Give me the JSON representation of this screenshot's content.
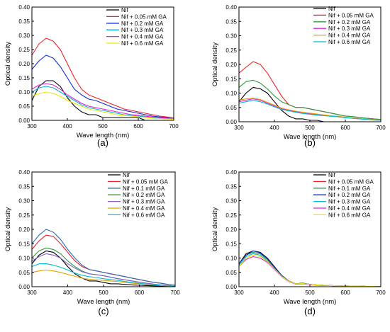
{
  "figure": {
    "panels": [
      {
        "id": "a",
        "label": "(a)"
      },
      {
        "id": "b",
        "label": "(b)"
      },
      {
        "id": "c",
        "label": "(c)"
      },
      {
        "id": "d",
        "label": "(d)"
      }
    ]
  },
  "chart_data": [
    {
      "type": "line",
      "title": "",
      "panel_label": "(a)",
      "xlabel": "Wave length (nm)",
      "ylabel": "Optical density",
      "xlim": [
        300,
        700
      ],
      "ylim": [
        0,
        0.4
      ],
      "xticks": [
        "300",
        "400",
        "500",
        "600",
        "700"
      ],
      "yticks": [
        "0.00",
        "0.05",
        "0.10",
        "0.15",
        "0.20",
        "0.25",
        "0.30",
        "0.35",
        "0.40"
      ],
      "grid": false,
      "legend": "top-right",
      "x": [
        300,
        320,
        340,
        360,
        380,
        400,
        420,
        440,
        460,
        480,
        500,
        520,
        540,
        560,
        580,
        600,
        620,
        640,
        660,
        680,
        700
      ],
      "series": [
        {
          "name": "Nif",
          "color": "#000000",
          "values": [
            0.07,
            0.12,
            0.14,
            0.14,
            0.12,
            0.08,
            0.05,
            0.03,
            0.02,
            0.02,
            0.01,
            0.01,
            0.01,
            0.01,
            0.01,
            0.01,
            0.0,
            0.0,
            0.0,
            0.0,
            0.0
          ]
        },
        {
          "name": "Nif + 0.05 mM GA",
          "color": "#e8202a",
          "values": [
            0.23,
            0.27,
            0.29,
            0.28,
            0.25,
            0.2,
            0.15,
            0.11,
            0.09,
            0.08,
            0.07,
            0.06,
            0.05,
            0.04,
            0.035,
            0.03,
            0.025,
            0.02,
            0.015,
            0.012,
            0.01
          ]
        },
        {
          "name": "Nif + 0.2 mM GA",
          "color": "#1428c8",
          "values": [
            0.18,
            0.21,
            0.23,
            0.22,
            0.19,
            0.15,
            0.11,
            0.09,
            0.075,
            0.07,
            0.06,
            0.05,
            0.04,
            0.035,
            0.03,
            0.025,
            0.02,
            0.015,
            0.012,
            0.01,
            0.005
          ]
        },
        {
          "name": "Nif + 0.3 mM GA",
          "color": "#00bcd4",
          "values": [
            0.1,
            0.115,
            0.12,
            0.115,
            0.1,
            0.085,
            0.07,
            0.055,
            0.045,
            0.04,
            0.035,
            0.03,
            0.025,
            0.02,
            0.018,
            0.015,
            0.012,
            0.01,
            0.008,
            0.006,
            0.005
          ]
        },
        {
          "name": "Nif + 0.4 mM GA",
          "color": "#e020e0",
          "values": [
            0.11,
            0.125,
            0.13,
            0.125,
            0.11,
            0.09,
            0.075,
            0.06,
            0.05,
            0.045,
            0.04,
            0.035,
            0.03,
            0.025,
            0.02,
            0.018,
            0.015,
            0.012,
            0.01,
            0.008,
            0.006
          ]
        },
        {
          "name": "Nif + 0.6 mM GA",
          "color": "#f2e600",
          "values": [
            0.085,
            0.095,
            0.1,
            0.095,
            0.085,
            0.07,
            0.06,
            0.05,
            0.04,
            0.035,
            0.03,
            0.025,
            0.02,
            0.018,
            0.015,
            0.012,
            0.01,
            0.008,
            0.006,
            0.005,
            0.004
          ]
        }
      ]
    },
    {
      "type": "line",
      "title": "",
      "panel_label": "(b)",
      "xlabel": "Wave length (nm)",
      "ylabel": "Optical density",
      "xlim": [
        300,
        700
      ],
      "ylim": [
        0,
        0.4
      ],
      "xticks": [
        "300",
        "400",
        "500",
        "600",
        "700"
      ],
      "yticks": [
        "0.00",
        "0.05",
        "0.10",
        "0.15",
        "0.20",
        "0.25",
        "0.30",
        "0.35",
        "0.40"
      ],
      "grid": false,
      "legend": "top-right",
      "x": [
        300,
        320,
        340,
        360,
        380,
        400,
        420,
        440,
        460,
        480,
        500,
        520,
        540,
        560,
        580,
        600,
        620,
        640,
        660,
        680,
        700
      ],
      "series": [
        {
          "name": "Nif",
          "color": "#000000",
          "values": [
            0.07,
            0.1,
            0.12,
            0.115,
            0.1,
            0.07,
            0.04,
            0.02,
            0.01,
            0.01,
            0.005,
            0.005,
            0.0,
            0.0,
            0.0,
            0.0,
            0.0,
            0.0,
            0.0,
            0.0,
            0.0
          ]
        },
        {
          "name": "Nif + 0.05 mM GA",
          "color": "#e8202a",
          "values": [
            0.17,
            0.19,
            0.21,
            0.2,
            0.17,
            0.13,
            0.09,
            0.06,
            0.05,
            0.05,
            0.045,
            0.04,
            0.035,
            0.03,
            0.025,
            0.02,
            0.018,
            0.015,
            0.012,
            0.01,
            0.008
          ]
        },
        {
          "name": "Nif + 0.2 mM GA",
          "color": "#2e9b3e",
          "values": [
            0.12,
            0.14,
            0.145,
            0.135,
            0.115,
            0.09,
            0.07,
            0.06,
            0.05,
            0.05,
            0.045,
            0.04,
            0.035,
            0.03,
            0.025,
            0.02,
            0.018,
            0.015,
            0.012,
            0.01,
            0.008
          ]
        },
        {
          "name": "Nif + 0.3 mM GA",
          "color": "#e020e0",
          "values": [
            0.07,
            0.075,
            0.08,
            0.075,
            0.065,
            0.055,
            0.045,
            0.04,
            0.035,
            0.03,
            0.028,
            0.025,
            0.022,
            0.02,
            0.018,
            0.015,
            0.012,
            0.01,
            0.008,
            0.006,
            0.005
          ]
        },
        {
          "name": "Nif + 0.4 mM GA",
          "color": "#e5a000",
          "values": [
            0.075,
            0.08,
            0.082,
            0.078,
            0.068,
            0.058,
            0.048,
            0.042,
            0.037,
            0.033,
            0.03,
            0.027,
            0.024,
            0.021,
            0.019,
            0.016,
            0.013,
            0.011,
            0.009,
            0.007,
            0.006
          ]
        },
        {
          "name": "Nif + 0.6 mM GA",
          "color": "#00bcd4",
          "values": [
            0.065,
            0.07,
            0.075,
            0.07,
            0.062,
            0.052,
            0.043,
            0.038,
            0.033,
            0.029,
            0.026,
            0.023,
            0.021,
            0.019,
            0.017,
            0.014,
            0.012,
            0.01,
            0.008,
            0.006,
            0.005
          ]
        }
      ]
    },
    {
      "type": "line",
      "title": "",
      "panel_label": "(c)",
      "xlabel": "Wave length (nm)",
      "ylabel": "Optical density",
      "xlim": [
        300,
        700
      ],
      "ylim": [
        0,
        0.4
      ],
      "xticks": [
        "300",
        "400",
        "500",
        "600",
        "700"
      ],
      "yticks": [
        "0.00",
        "0.05",
        "0.10",
        "0.15",
        "0.20",
        "0.25",
        "0.30",
        "0.35",
        "0.40"
      ],
      "grid": false,
      "legend": "top-right",
      "x": [
        300,
        320,
        340,
        360,
        380,
        400,
        420,
        440,
        460,
        480,
        500,
        520,
        540,
        560,
        580,
        600,
        620,
        640,
        660,
        680,
        700
      ],
      "series": [
        {
          "name": "Nif",
          "color": "#000000",
          "values": [
            0.08,
            0.11,
            0.125,
            0.12,
            0.1,
            0.07,
            0.045,
            0.03,
            0.02,
            0.02,
            0.015,
            0.01,
            0.01,
            0.008,
            0.006,
            0.005,
            0.004,
            0.003,
            0.002,
            0.001,
            0.0
          ]
        },
        {
          "name": "Nif + 0.05 mM GA",
          "color": "#e8202a",
          "values": [
            0.13,
            0.16,
            0.18,
            0.175,
            0.15,
            0.12,
            0.09,
            0.07,
            0.06,
            0.055,
            0.05,
            0.045,
            0.04,
            0.035,
            0.03,
            0.025,
            0.02,
            0.015,
            0.012,
            0.008,
            0.005
          ]
        },
        {
          "name": "Nif + 0.1 mM GA",
          "color": "#2a6bb5",
          "values": [
            0.15,
            0.18,
            0.2,
            0.19,
            0.165,
            0.13,
            0.1,
            0.075,
            0.06,
            0.055,
            0.05,
            0.045,
            0.04,
            0.035,
            0.03,
            0.025,
            0.02,
            0.015,
            0.012,
            0.008,
            0.005
          ]
        },
        {
          "name": "Nif + 0.2 mM GA",
          "color": "#2e9b3e",
          "values": [
            0.1,
            0.125,
            0.135,
            0.13,
            0.115,
            0.09,
            0.07,
            0.055,
            0.045,
            0.042,
            0.038,
            0.033,
            0.028,
            0.024,
            0.02,
            0.016,
            0.012,
            0.009,
            0.006,
            0.004,
            0.002
          ]
        },
        {
          "name": "Nif + 0.3 mM GA",
          "color": "#8a5cc8",
          "values": [
            0.09,
            0.105,
            0.115,
            0.11,
            0.1,
            0.08,
            0.065,
            0.052,
            0.045,
            0.042,
            0.038,
            0.033,
            0.028,
            0.024,
            0.02,
            0.016,
            0.012,
            0.009,
            0.006,
            0.004,
            0.002
          ]
        },
        {
          "name": "Nif + 0.4 mM GA",
          "color": "#e5a000",
          "values": [
            0.05,
            0.055,
            0.058,
            0.055,
            0.05,
            0.043,
            0.036,
            0.03,
            0.026,
            0.024,
            0.022,
            0.02,
            0.018,
            0.015,
            0.012,
            0.01,
            0.008,
            0.006,
            0.004,
            0.003,
            0.002
          ]
        },
        {
          "name": "Nif + 0.6 mM GA",
          "color": "#00bcd4",
          "values": [
            0.07,
            0.08,
            0.08,
            0.075,
            0.068,
            0.058,
            0.048,
            0.04,
            0.035,
            0.032,
            0.028,
            0.025,
            0.022,
            0.018,
            0.015,
            0.012,
            0.009,
            0.007,
            0.005,
            0.003,
            0.002
          ]
        }
      ]
    },
    {
      "type": "line",
      "title": "",
      "panel_label": "(d)",
      "xlabel": "Wave length (nm)",
      "ylabel": "Optical density",
      "xlim": [
        300,
        700
      ],
      "ylim": [
        0,
        0.4
      ],
      "xticks": [
        "300",
        "400",
        "500",
        "600",
        "700"
      ],
      "yticks": [
        "0.00",
        "0.05",
        "0.10",
        "0.15",
        "0.20",
        "0.25",
        "0.30",
        "0.35",
        "0.40"
      ],
      "grid": false,
      "legend": "top-right",
      "x": [
        300,
        320,
        340,
        360,
        380,
        400,
        420,
        440,
        460,
        480,
        500,
        520,
        540,
        560,
        580,
        600,
        620,
        640,
        660,
        680,
        700
      ],
      "series": [
        {
          "name": "Nif",
          "color": "#000000",
          "values": [
            0.08,
            0.115,
            0.125,
            0.12,
            0.1,
            0.07,
            0.04,
            0.02,
            0.01,
            0.012,
            0.008,
            0.006,
            0.005,
            0.004,
            0.003,
            0.003,
            0.002,
            0.002,
            0.001,
            0.001,
            0.0
          ]
        },
        {
          "name": "Nif + 0.05 mM GA",
          "color": "#e8202a",
          "values": [
            0.08,
            0.11,
            0.12,
            0.115,
            0.095,
            0.065,
            0.038,
            0.02,
            0.01,
            0.012,
            0.008,
            0.006,
            0.005,
            0.004,
            0.003,
            0.003,
            0.002,
            0.002,
            0.001,
            0.001,
            0.0
          ]
        },
        {
          "name": "Nif + 0.1 mM GA",
          "color": "#2e9b3e",
          "values": [
            0.08,
            0.11,
            0.12,
            0.115,
            0.095,
            0.066,
            0.039,
            0.02,
            0.01,
            0.012,
            0.008,
            0.006,
            0.005,
            0.004,
            0.003,
            0.003,
            0.002,
            0.002,
            0.001,
            0.001,
            0.0
          ]
        },
        {
          "name": "Nif + 0.2 mM GA",
          "color": "#1428c8",
          "values": [
            0.08,
            0.11,
            0.125,
            0.118,
            0.098,
            0.068,
            0.04,
            0.02,
            0.01,
            0.012,
            0.008,
            0.006,
            0.005,
            0.004,
            0.003,
            0.003,
            0.002,
            0.002,
            0.001,
            0.001,
            0.0
          ]
        },
        {
          "name": "Nif + 0.3 mM GA",
          "color": "#00bcd4",
          "values": [
            0.075,
            0.105,
            0.115,
            0.11,
            0.09,
            0.063,
            0.037,
            0.019,
            0.01,
            0.011,
            0.008,
            0.006,
            0.005,
            0.004,
            0.003,
            0.003,
            0.002,
            0.002,
            0.001,
            0.001,
            0.0
          ]
        },
        {
          "name": "Nif + 0.4 mM GA",
          "color": "#e020e0",
          "values": [
            0.07,
            0.095,
            0.105,
            0.1,
            0.085,
            0.06,
            0.035,
            0.018,
            0.009,
            0.01,
            0.007,
            0.005,
            0.004,
            0.004,
            0.003,
            0.002,
            0.002,
            0.001,
            0.001,
            0.001,
            0.0
          ]
        },
        {
          "name": "Nif + 0.6 mM GA",
          "color": "#f2e600",
          "values": [
            0.07,
            0.1,
            0.11,
            0.105,
            0.088,
            0.062,
            0.036,
            0.019,
            0.01,
            0.011,
            0.008,
            0.006,
            0.005,
            0.004,
            0.003,
            0.003,
            0.002,
            0.002,
            0.001,
            0.001,
            0.0
          ]
        }
      ]
    }
  ]
}
